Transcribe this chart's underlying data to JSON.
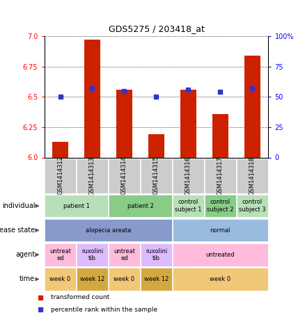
{
  "title": "GDS5275 / 203418_at",
  "samples": [
    "GSM1414312",
    "GSM1414313",
    "GSM1414314",
    "GSM1414315",
    "GSM1414316",
    "GSM1414317",
    "GSM1414318"
  ],
  "transformed_count": [
    6.13,
    6.97,
    6.56,
    6.19,
    6.56,
    6.36,
    6.84
  ],
  "percentile_rank": [
    50,
    57,
    55,
    50,
    56,
    54,
    57
  ],
  "ylim_left": [
    6.0,
    7.0
  ],
  "ylim_right": [
    0,
    100
  ],
  "yticks_left": [
    6.0,
    6.25,
    6.5,
    6.75,
    7.0
  ],
  "yticks_right": [
    0,
    25,
    50,
    75,
    100
  ],
  "bar_color": "#cc2200",
  "dot_color": "#3333cc",
  "bar_width": 0.5,
  "annotation_rows": [
    {
      "label": "individual",
      "cells": [
        {
          "text": "patient 1",
          "span": 2,
          "color": "#b8e0b8"
        },
        {
          "text": "patient 2",
          "span": 2,
          "color": "#88cc88"
        },
        {
          "text": "control\nsubject 1",
          "span": 1,
          "color": "#b8e0b8"
        },
        {
          "text": "control\nsubject 2",
          "span": 1,
          "color": "#88cc88"
        },
        {
          "text": "control\nsubject 3",
          "span": 1,
          "color": "#b8e0b8"
        }
      ]
    },
    {
      "label": "disease state",
      "cells": [
        {
          "text": "alopecia areata",
          "span": 4,
          "color": "#8899cc"
        },
        {
          "text": "normal",
          "span": 3,
          "color": "#99bbdd"
        }
      ]
    },
    {
      "label": "agent",
      "cells": [
        {
          "text": "untreat\ned",
          "span": 1,
          "color": "#ffbbdd"
        },
        {
          "text": "ruxolini\ntib",
          "span": 1,
          "color": "#ddbbff"
        },
        {
          "text": "untreat\ned",
          "span": 1,
          "color": "#ffbbdd"
        },
        {
          "text": "ruxolini\ntib",
          "span": 1,
          "color": "#ddbbff"
        },
        {
          "text": "untreated",
          "span": 3,
          "color": "#ffbbdd"
        }
      ]
    },
    {
      "label": "time",
      "cells": [
        {
          "text": "week 0",
          "span": 1,
          "color": "#f0c878"
        },
        {
          "text": "week 12",
          "span": 1,
          "color": "#d4a840"
        },
        {
          "text": "week 0",
          "span": 1,
          "color": "#f0c878"
        },
        {
          "text": "week 12",
          "span": 1,
          "color": "#d4a840"
        },
        {
          "text": "week 0",
          "span": 3,
          "color": "#f0c878"
        }
      ]
    }
  ],
  "legend": [
    {
      "color": "#cc2200",
      "label": "transformed count"
    },
    {
      "color": "#3333cc",
      "label": "percentile rank within the sample"
    }
  ],
  "sample_row_color": "#cccccc",
  "figsize": [
    4.38,
    4.53
  ],
  "dpi": 100
}
